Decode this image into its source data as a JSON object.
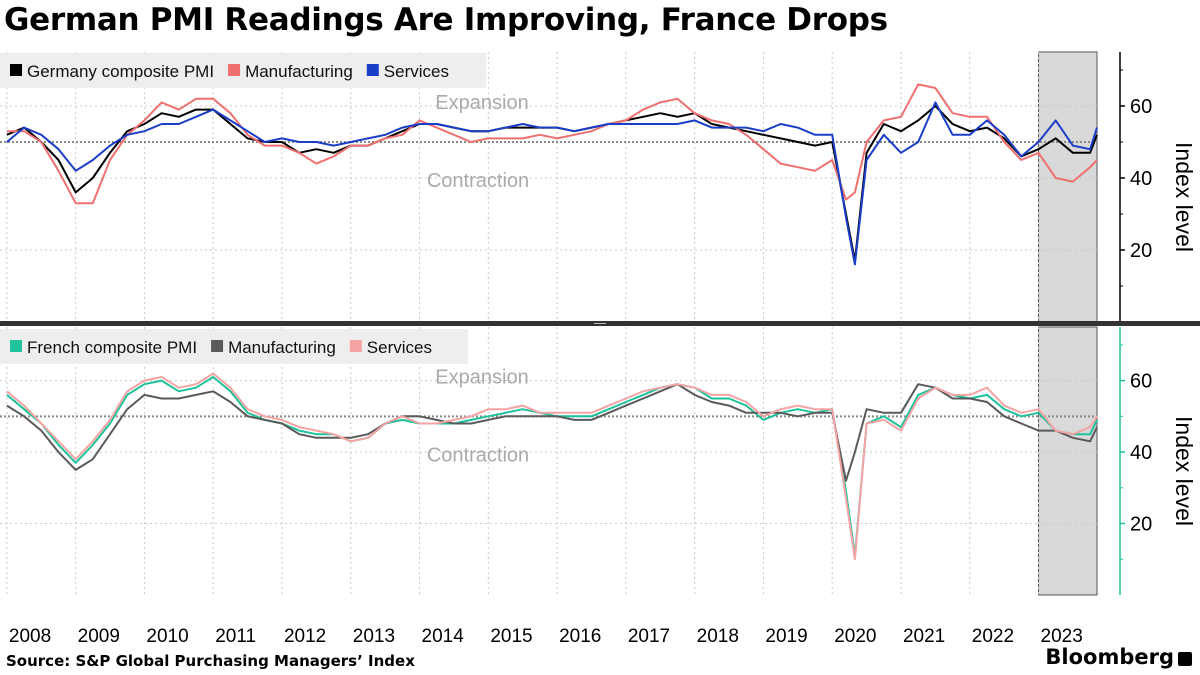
{
  "title": "German PMI Readings Are Improving, France Drops",
  "source": "Source: S&P Global Purchasing Managers’ Index",
  "brand": "Bloomberg",
  "colors": {
    "germany_composite": "#000000",
    "germany_manufacturing": "#f07070",
    "germany_services": "#1a3ec8",
    "france_composite": "#1ec29b",
    "france_manufacturing": "#5a5a5a",
    "france_services": "#f5a3a3",
    "highlight": "#d9d9d9",
    "right_axis_bottom": "#1ec29b"
  },
  "chart_data": [
    {
      "type": "line",
      "panel": "germany",
      "ylabel": "Index level",
      "ylim": [
        0,
        75
      ],
      "yticks": [
        20,
        40,
        60
      ],
      "reference_line": 50,
      "annotations": [
        "Expansion",
        "Contraction"
      ],
      "highlight_range": [
        2023.0,
        2023.85
      ],
      "legend": [
        "Germany composite PMI",
        "Manufacturing",
        "Services"
      ],
      "series": [
        {
          "name": "Germany composite PMI",
          "key": "germany_composite",
          "x": [
            2008.0,
            2008.25,
            2008.5,
            2008.75,
            2009.0,
            2009.25,
            2009.5,
            2009.75,
            2010.0,
            2010.25,
            2010.5,
            2010.75,
            2011.0,
            2011.25,
            2011.5,
            2011.75,
            2012.0,
            2012.25,
            2012.5,
            2012.75,
            2013.0,
            2013.25,
            2013.5,
            2013.75,
            2014.0,
            2014.25,
            2014.5,
            2014.75,
            2015.0,
            2015.25,
            2015.5,
            2015.75,
            2016.0,
            2016.25,
            2016.5,
            2016.75,
            2017.0,
            2017.25,
            2017.5,
            2017.75,
            2018.0,
            2018.25,
            2018.5,
            2018.75,
            2019.0,
            2019.25,
            2019.5,
            2019.75,
            2020.0,
            2020.2,
            2020.33,
            2020.5,
            2020.75,
            2021.0,
            2021.25,
            2021.5,
            2021.75,
            2022.0,
            2022.25,
            2022.5,
            2022.75,
            2023.0,
            2023.25,
            2023.5,
            2023.75,
            2023.85
          ],
          "values": [
            52,
            54,
            50,
            45,
            36,
            40,
            47,
            53,
            55,
            58,
            57,
            59,
            59,
            55,
            51,
            50,
            50,
            47,
            48,
            47,
            49,
            49,
            51,
            53,
            55,
            55,
            54,
            53,
            53,
            54,
            54,
            54,
            54,
            53,
            54,
            55,
            56,
            57,
            58,
            57,
            58,
            55,
            54,
            53,
            52,
            51,
            50,
            49,
            50,
            30,
            17,
            47,
            55,
            53,
            56,
            60,
            55,
            53,
            54,
            51,
            46,
            48,
            51,
            47,
            47,
            52
          ]
        },
        {
          "name": "Manufacturing",
          "key": "germany_manufacturing",
          "x": [
            2008.0,
            2008.25,
            2008.5,
            2008.75,
            2009.0,
            2009.25,
            2009.5,
            2009.75,
            2010.0,
            2010.25,
            2010.5,
            2010.75,
            2011.0,
            2011.25,
            2011.5,
            2011.75,
            2012.0,
            2012.25,
            2012.5,
            2012.75,
            2013.0,
            2013.25,
            2013.5,
            2013.75,
            2014.0,
            2014.25,
            2014.5,
            2014.75,
            2015.0,
            2015.25,
            2015.5,
            2015.75,
            2016.0,
            2016.25,
            2016.5,
            2016.75,
            2017.0,
            2017.25,
            2017.5,
            2017.75,
            2018.0,
            2018.25,
            2018.5,
            2018.75,
            2019.0,
            2019.25,
            2019.5,
            2019.75,
            2020.0,
            2020.2,
            2020.33,
            2020.5,
            2020.75,
            2021.0,
            2021.25,
            2021.5,
            2021.75,
            2022.0,
            2022.25,
            2022.5,
            2022.75,
            2023.0,
            2023.25,
            2023.5,
            2023.75,
            2023.85
          ],
          "values": [
            53,
            53,
            50,
            42,
            33,
            33,
            45,
            52,
            56,
            61,
            59,
            62,
            62,
            58,
            52,
            49,
            49,
            47,
            44,
            46,
            49,
            49,
            51,
            52,
            56,
            54,
            52,
            50,
            51,
            51,
            51,
            52,
            51,
            52,
            53,
            55,
            56,
            59,
            61,
            62,
            58,
            56,
            55,
            52,
            48,
            44,
            43,
            42,
            45,
            34,
            36,
            50,
            56,
            57,
            66,
            65,
            58,
            57,
            57,
            50,
            45,
            47,
            40,
            39,
            43,
            45
          ]
        },
        {
          "name": "Services",
          "key": "germany_services",
          "x": [
            2008.0,
            2008.25,
            2008.5,
            2008.75,
            2009.0,
            2009.25,
            2009.5,
            2009.75,
            2010.0,
            2010.25,
            2010.5,
            2010.75,
            2011.0,
            2011.25,
            2011.5,
            2011.75,
            2012.0,
            2012.25,
            2012.5,
            2012.75,
            2013.0,
            2013.25,
            2013.5,
            2013.75,
            2014.0,
            2014.25,
            2014.5,
            2014.75,
            2015.0,
            2015.25,
            2015.5,
            2015.75,
            2016.0,
            2016.25,
            2016.5,
            2016.75,
            2017.0,
            2017.25,
            2017.5,
            2017.75,
            2018.0,
            2018.25,
            2018.5,
            2018.75,
            2019.0,
            2019.25,
            2019.5,
            2019.75,
            2020.0,
            2020.2,
            2020.33,
            2020.5,
            2020.75,
            2021.0,
            2021.25,
            2021.5,
            2021.75,
            2022.0,
            2022.25,
            2022.5,
            2022.75,
            2023.0,
            2023.25,
            2023.5,
            2023.75,
            2023.85
          ],
          "values": [
            50,
            54,
            52,
            48,
            42,
            45,
            49,
            52,
            53,
            55,
            55,
            57,
            59,
            56,
            53,
            50,
            51,
            50,
            50,
            49,
            50,
            51,
            52,
            54,
            55,
            55,
            54,
            53,
            53,
            54,
            55,
            54,
            54,
            53,
            54,
            55,
            55,
            55,
            55,
            55,
            56,
            54,
            54,
            54,
            53,
            55,
            54,
            52,
            52,
            29,
            16,
            45,
            52,
            47,
            50,
            61,
            52,
            52,
            56,
            52,
            46,
            50,
            56,
            49,
            48,
            54
          ]
        }
      ]
    },
    {
      "type": "line",
      "panel": "france",
      "ylabel": "Index level",
      "ylim": [
        0,
        75
      ],
      "yticks": [
        20,
        40,
        60
      ],
      "reference_line": 50,
      "annotations": [
        "Expansion",
        "Contraction"
      ],
      "highlight_range": [
        2023.0,
        2023.85
      ],
      "legend": [
        "French composite PMI",
        "Manufacturing",
        "Services"
      ],
      "series": [
        {
          "name": "French composite PMI",
          "key": "france_composite",
          "x": [
            2008.0,
            2008.25,
            2008.5,
            2008.75,
            2009.0,
            2009.25,
            2009.5,
            2009.75,
            2010.0,
            2010.25,
            2010.5,
            2010.75,
            2011.0,
            2011.25,
            2011.5,
            2011.75,
            2012.0,
            2012.25,
            2012.5,
            2012.75,
            2013.0,
            2013.25,
            2013.5,
            2013.75,
            2014.0,
            2014.25,
            2014.5,
            2014.75,
            2015.0,
            2015.25,
            2015.5,
            2015.75,
            2016.0,
            2016.25,
            2016.5,
            2016.75,
            2017.0,
            2017.25,
            2017.5,
            2017.75,
            2018.0,
            2018.25,
            2018.5,
            2018.75,
            2019.0,
            2019.25,
            2019.5,
            2019.75,
            2020.0,
            2020.2,
            2020.33,
            2020.5,
            2020.75,
            2021.0,
            2021.25,
            2021.5,
            2021.75,
            2022.0,
            2022.25,
            2022.5,
            2022.75,
            2023.0,
            2023.25,
            2023.5,
            2023.75,
            2023.85
          ],
          "values": [
            56,
            52,
            48,
            42,
            37,
            42,
            48,
            56,
            59,
            60,
            57,
            58,
            61,
            57,
            51,
            49,
            48,
            46,
            45,
            45,
            43,
            44,
            48,
            49,
            48,
            48,
            48,
            49,
            50,
            51,
            52,
            51,
            50,
            50,
            50,
            52,
            54,
            56,
            58,
            59,
            58,
            55,
            55,
            53,
            49,
            51,
            52,
            51,
            52,
            29,
            11,
            48,
            50,
            47,
            56,
            58,
            56,
            55,
            56,
            52,
            50,
            51,
            46,
            45,
            45,
            49
          ]
        },
        {
          "name": "Manufacturing",
          "key": "france_manufacturing",
          "x": [
            2008.0,
            2008.25,
            2008.5,
            2008.75,
            2009.0,
            2009.25,
            2009.5,
            2009.75,
            2010.0,
            2010.25,
            2010.5,
            2010.75,
            2011.0,
            2011.25,
            2011.5,
            2011.75,
            2012.0,
            2012.25,
            2012.5,
            2012.75,
            2013.0,
            2013.25,
            2013.5,
            2013.75,
            2014.0,
            2014.25,
            2014.5,
            2014.75,
            2015.0,
            2015.25,
            2015.5,
            2015.75,
            2016.0,
            2016.25,
            2016.5,
            2016.75,
            2017.0,
            2017.25,
            2017.5,
            2017.75,
            2018.0,
            2018.25,
            2018.5,
            2018.75,
            2019.0,
            2019.25,
            2019.5,
            2019.75,
            2020.0,
            2020.2,
            2020.33,
            2020.5,
            2020.75,
            2021.0,
            2021.25,
            2021.5,
            2021.75,
            2022.0,
            2022.25,
            2022.5,
            2022.75,
            2023.0,
            2023.25,
            2023.5,
            2023.75,
            2023.85
          ],
          "values": [
            53,
            50,
            46,
            40,
            35,
            38,
            45,
            52,
            56,
            55,
            55,
            56,
            57,
            54,
            50,
            49,
            48,
            45,
            44,
            44,
            44,
            45,
            48,
            50,
            50,
            49,
            48,
            48,
            49,
            50,
            50,
            50,
            50,
            49,
            49,
            51,
            53,
            55,
            57,
            59,
            56,
            54,
            53,
            51,
            51,
            51,
            50,
            51,
            51,
            32,
            40,
            52,
            51,
            51,
            59,
            58,
            55,
            55,
            54,
            50,
            48,
            46,
            46,
            44,
            43,
            47
          ]
        },
        {
          "name": "Services",
          "key": "france_services",
          "x": [
            2008.0,
            2008.25,
            2008.5,
            2008.75,
            2009.0,
            2009.25,
            2009.5,
            2009.75,
            2010.0,
            2010.25,
            2010.5,
            2010.75,
            2011.0,
            2011.25,
            2011.5,
            2011.75,
            2012.0,
            2012.25,
            2012.5,
            2012.75,
            2013.0,
            2013.25,
            2013.5,
            2013.75,
            2014.0,
            2014.25,
            2014.5,
            2014.75,
            2015.0,
            2015.25,
            2015.5,
            2015.75,
            2016.0,
            2016.25,
            2016.5,
            2016.75,
            2017.0,
            2017.25,
            2017.5,
            2017.75,
            2018.0,
            2018.25,
            2018.5,
            2018.75,
            2019.0,
            2019.25,
            2019.5,
            2019.75,
            2020.0,
            2020.2,
            2020.33,
            2020.5,
            2020.75,
            2021.0,
            2021.25,
            2021.5,
            2021.75,
            2022.0,
            2022.25,
            2022.5,
            2022.75,
            2023.0,
            2023.25,
            2023.5,
            2023.75,
            2023.85
          ],
          "values": [
            57,
            53,
            48,
            43,
            38,
            43,
            49,
            57,
            60,
            61,
            58,
            59,
            62,
            58,
            52,
            50,
            49,
            47,
            46,
            45,
            43,
            44,
            48,
            50,
            48,
            48,
            49,
            50,
            52,
            52,
            53,
            51,
            51,
            51,
            51,
            53,
            55,
            57,
            58,
            59,
            58,
            56,
            56,
            54,
            50,
            52,
            53,
            52,
            52,
            27,
            10,
            48,
            49,
            46,
            55,
            58,
            56,
            56,
            58,
            53,
            51,
            52,
            46,
            45,
            47,
            50
          ]
        }
      ]
    }
  ],
  "x_axis": {
    "labels": [
      "2008",
      "2009",
      "2010",
      "2011",
      "2012",
      "2013",
      "2014",
      "2015",
      "2016",
      "2017",
      "2018",
      "2019",
      "2020",
      "2021",
      "2022",
      "2023"
    ]
  }
}
